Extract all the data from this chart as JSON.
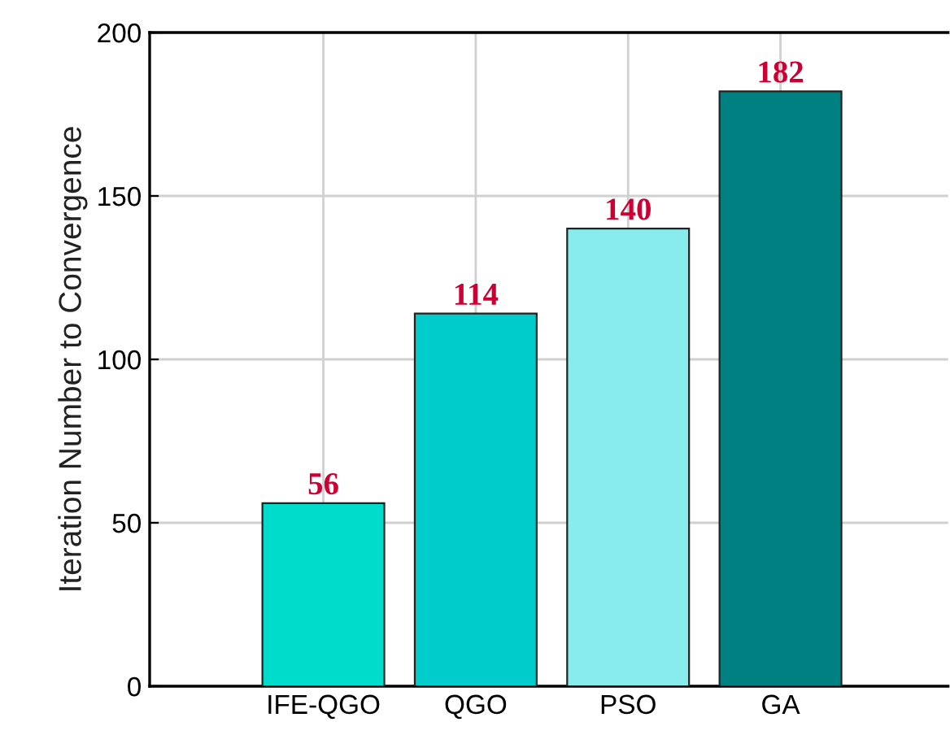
{
  "chart_data": {
    "type": "bar",
    "ylabel": "Iteration Number to Convergence",
    "categories": [
      "IFE-QGO",
      "QGO",
      "PSO",
      "GA"
    ],
    "values": [
      56,
      114,
      140,
      182
    ],
    "colors": [
      "#00dccc",
      "#00cccc",
      "#88ecec",
      "#008080"
    ],
    "ylim": [
      0,
      200
    ],
    "yticks": [
      0,
      50,
      100,
      150,
      200
    ],
    "grid": true,
    "data_labels": true
  }
}
